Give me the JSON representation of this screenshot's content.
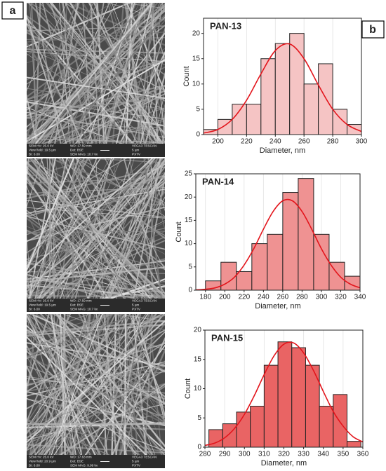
{
  "panel_labels": [
    "a",
    "b"
  ],
  "sem_images": [
    {
      "labels": [
        "SEM HV: 25.0 kV",
        "WD: 17.59 mm",
        "VEGA3 TESCAN",
        "View field: 19.5 µm",
        "Det: BSE",
        "5 µm",
        "BI: 6.00",
        "SEM MAG: 10.7 kx",
        "PXTV"
      ]
    },
    {
      "labels": [
        "SEM HV: 25.0 kV",
        "WD: 17.59 mm",
        "VEGA3 TESCAN",
        "View field: 19.5 µm",
        "Det: BSE",
        "5 µm",
        "BI: 6.00",
        "SEM MAG: 10.7 kx",
        "PXTV"
      ]
    },
    {
      "labels": [
        "SEM HV: 25.0 kV",
        "WD: 17.63 mm",
        "VEGA3 TESCAN",
        "View field: 20.9 µm",
        "Det: BSE",
        "5 µm",
        "BI: 6.00",
        "SEM MAG: 9.99 kx",
        "PXTV"
      ]
    }
  ],
  "chart_data": [
    {
      "type": "histogram",
      "title": "PAN-13",
      "xlabel": "Diameter, nm",
      "ylabel": "Count",
      "color": "#f5c4c4",
      "grid": "x",
      "bins": [
        190,
        200,
        210,
        220,
        230,
        240,
        250,
        260,
        270,
        280,
        290,
        300
      ],
      "values": [
        1,
        3,
        6,
        6,
        15,
        18,
        20,
        10,
        14,
        5,
        2
      ],
      "xlim": [
        190,
        300
      ],
      "xticks": [
        200,
        220,
        240,
        260,
        280,
        300
      ],
      "ylim": [
        0,
        23
      ],
      "yticks": [
        0,
        5,
        10,
        15,
        20
      ],
      "fit": {
        "color": "#e3151c",
        "x": [
          190,
          200,
          210,
          220,
          230,
          240,
          250,
          260,
          270,
          280,
          290,
          300
        ],
        "y": [
          0.3,
          1.0,
          3.0,
          6.8,
          12.0,
          16.6,
          17.9,
          15.0,
          9.8,
          5.0,
          2.0,
          0.6
        ]
      }
    },
    {
      "type": "histogram",
      "title": "PAN-14",
      "xlabel": "Diameter, nm",
      "ylabel": "Count",
      "color": "#ef9292",
      "grid": "x",
      "bins": [
        180,
        196,
        212,
        228,
        244,
        260,
        276,
        292,
        308,
        324,
        340
      ],
      "values": [
        2,
        6,
        4,
        10,
        12,
        21,
        24,
        12,
        6,
        3
      ],
      "xlim": [
        170,
        340
      ],
      "xticks": [
        180,
        200,
        220,
        240,
        260,
        280,
        300,
        320,
        340
      ],
      "ylim": [
        0,
        25
      ],
      "yticks": [
        0,
        5,
        10,
        15,
        20,
        25
      ],
      "fit": {
        "color": "#e3151c",
        "x": [
          170,
          180,
          190,
          200,
          210,
          220,
          230,
          240,
          250,
          260,
          270,
          280,
          290,
          300,
          310,
          320,
          330,
          340
        ],
        "y": [
          0.06,
          0.2,
          0.5,
          1.3,
          2.8,
          5.4,
          8.9,
          13.1,
          16.9,
          19.2,
          19.2,
          16.9,
          13.1,
          8.9,
          5.4,
          2.8,
          1.3,
          0.5
        ]
      }
    },
    {
      "type": "histogram",
      "title": "PAN-15",
      "xlabel": "Diameter, nm",
      "ylabel": "Count",
      "color": "#e96464",
      "grid": "x",
      "bins": [
        282,
        289,
        296,
        303,
        310,
        317,
        324,
        331,
        338,
        345,
        352,
        359
      ],
      "values": [
        3,
        4,
        6,
        7,
        14,
        18,
        17,
        14,
        7,
        9,
        1
      ],
      "xlim": [
        280,
        360
      ],
      "xticks": [
        280,
        290,
        300,
        310,
        320,
        330,
        340,
        350,
        360
      ],
      "ylim": [
        0,
        20
      ],
      "yticks": [
        0,
        5,
        10,
        15,
        20
      ],
      "fit": {
        "color": "#e3151c",
        "x": [
          280,
          285,
          290,
          295,
          300,
          305,
          310,
          315,
          320,
          325,
          330,
          335,
          340,
          345,
          350,
          355,
          360
        ],
        "y": [
          0.3,
          0.7,
          1.6,
          3.2,
          5.6,
          8.8,
          12.4,
          15.6,
          17.6,
          17.8,
          16.1,
          13.1,
          9.5,
          6.1,
          3.6,
          1.8,
          0.9
        ]
      }
    }
  ]
}
